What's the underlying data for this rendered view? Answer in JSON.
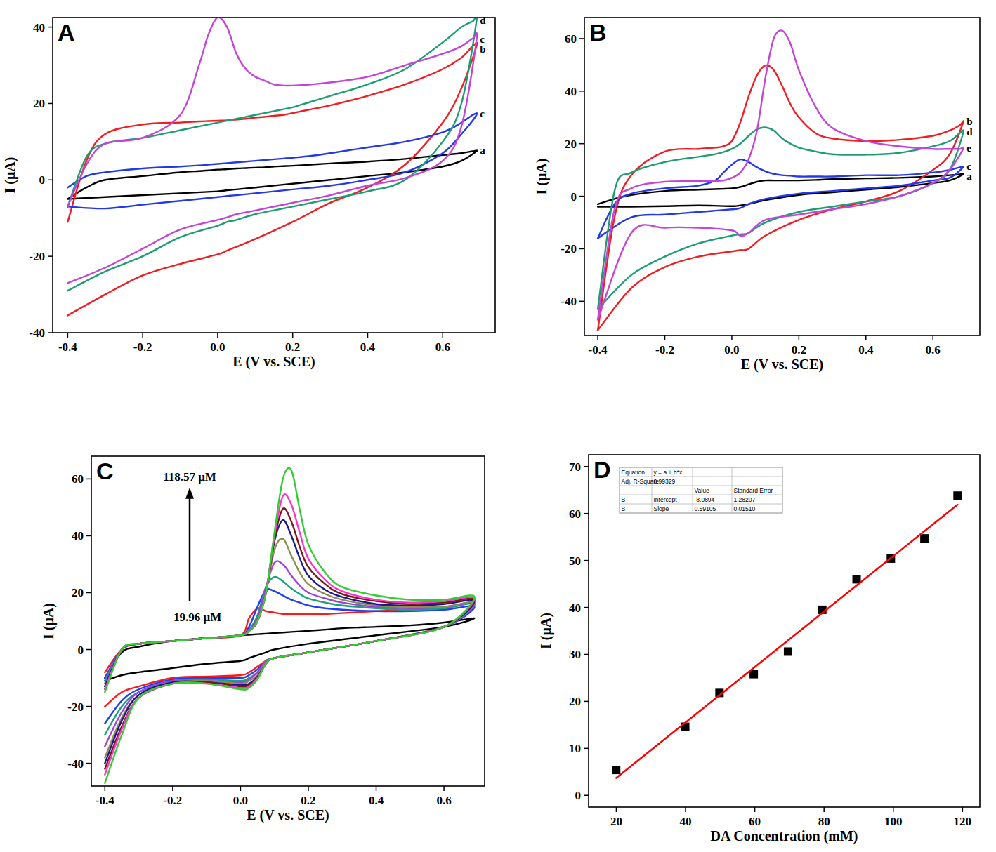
{
  "chart_data": [
    {
      "type": "line",
      "title": "A",
      "x_label": "E (V vs. SCE)",
      "y_label": "I (μA)",
      "xlim": [
        -0.44,
        0.74
      ],
      "xticks": [
        -0.4,
        -0.2,
        {
          "value": 0,
          "label": "0.0"
        },
        0.2,
        0.4,
        0.6
      ],
      "ylim": [
        -40,
        42.5
      ],
      "yticks": [
        -40,
        -20,
        0,
        20,
        40
      ],
      "grid": false,
      "x": [
        -0.4,
        -0.35,
        -0.3,
        -0.2,
        -0.1,
        -0.05,
        -0.025,
        0,
        0.025,
        0.05,
        0.075,
        0.1,
        0.125,
        0.15,
        0.175,
        0.2,
        0.25,
        0.3,
        0.4,
        0.5,
        0.6,
        0.65,
        0.68,
        0.69,
        0.65,
        0.6,
        0.5,
        0.4,
        0.3,
        0.2,
        0.1,
        0.05,
        0.025,
        0,
        -0.1,
        -0.2,
        -0.3,
        -0.4
      ],
      "series": [
        {
          "name": "a",
          "color": "#000000",
          "values": [
            -5,
            -2,
            0,
            1,
            2,
            2.3,
            2.5,
            2.7,
            2.8,
            3,
            3.1,
            3.2,
            3.3,
            3.5,
            3.6,
            3.7,
            4,
            4.3,
            4.8,
            5.5,
            6.5,
            7,
            7.5,
            7.5,
            5,
            3.5,
            2,
            1,
            0,
            -1,
            -2,
            -2.5,
            -2.7,
            -3,
            -3.5,
            -4,
            -4.5,
            -5
          ]
        },
        {
          "name": "b",
          "color": "#f01e23",
          "values": [
            -11,
            5,
            12,
            14.5,
            15,
            15.3,
            15.4,
            15.5,
            15.6,
            15.8,
            16,
            16.3,
            16.5,
            16.8,
            17,
            17.5,
            18.5,
            19.5,
            22,
            25,
            29,
            32,
            35,
            35,
            24,
            15,
            4,
            -2,
            -6,
            -11,
            -15.5,
            -17.5,
            -18.5,
            -19.5,
            -22,
            -25,
            -30,
            -35.5
          ]
        },
        {
          "name": "c",
          "color": "#2438e8",
          "values": [
            -2,
            1,
            2,
            3,
            3.5,
            3.8,
            4,
            4.2,
            4.4,
            4.6,
            4.8,
            5,
            5.2,
            5.4,
            5.6,
            5.8,
            6.3,
            7,
            8.5,
            10,
            12.5,
            15,
            17,
            17,
            12,
            7,
            2,
            0,
            -1.5,
            -2.5,
            -3.5,
            -4,
            -4.2,
            -4.5,
            -5.5,
            -6.5,
            -7.5,
            -7
          ]
        },
        {
          "name": "d",
          "color": "#1d9e70",
          "values": [
            -7,
            6,
            9.5,
            11,
            13,
            14,
            14.5,
            15,
            15.5,
            16,
            16.5,
            17,
            17.5,
            18,
            18.5,
            19,
            20.5,
            22,
            25,
            29,
            36,
            40,
            41.5,
            41.5,
            20,
            10,
            0,
            -3,
            -5,
            -7,
            -9,
            -10.5,
            -11,
            -12,
            -15,
            -20,
            -24,
            -29
          ]
        },
        {
          "name": "c",
          "color": "#c443d8",
          "values": [
            -7,
            4,
            9.5,
            11,
            17,
            30,
            38,
            42.5,
            40,
            33,
            29,
            27,
            26,
            25,
            24.7,
            24.7,
            25,
            25.5,
            27,
            30,
            33,
            35,
            37,
            36.5,
            14,
            5,
            0.5,
            -1.5,
            -4,
            -6,
            -8,
            -9,
            -9.8,
            -10.5,
            -13,
            -18,
            -23,
            -27
          ]
        }
      ]
    },
    {
      "type": "line",
      "title": "B",
      "x_label": "E (V vs. SCE)",
      "y_label": "I (μA)",
      "xlim": [
        -0.44,
        0.74
      ],
      "xticks": [
        -0.4,
        -0.2,
        {
          "value": 0,
          "label": "0.0"
        },
        0.2,
        0.4,
        0.6
      ],
      "ylim": [
        -53,
        68
      ],
      "yticks": [
        -40,
        -20,
        0,
        20,
        40,
        60
      ],
      "grid": false,
      "x": [
        -0.4,
        -0.35,
        -0.3,
        -0.2,
        -0.1,
        -0.05,
        -0.025,
        0,
        0.025,
        0.05,
        0.075,
        0.1,
        0.125,
        0.15,
        0.175,
        0.2,
        0.25,
        0.3,
        0.4,
        0.5,
        0.6,
        0.65,
        0.68,
        0.69,
        0.65,
        0.6,
        0.5,
        0.4,
        0.3,
        0.2,
        0.1,
        0.05,
        0.025,
        0,
        -0.1,
        -0.2,
        -0.3,
        -0.4
      ],
      "series": [
        {
          "name": "a",
          "color": "#000000",
          "values": [
            -3,
            -1,
            0.5,
            2,
            2.5,
            2.7,
            2.8,
            3,
            3.5,
            4.5,
            5.5,
            6,
            6,
            6,
            6,
            6,
            6.2,
            6.5,
            6.8,
            7,
            7.5,
            8,
            8.3,
            8.3,
            6,
            5,
            3.5,
            2.5,
            1.5,
            0.5,
            -1.5,
            -3,
            -3.5,
            -3.8,
            -3.5,
            -3.8,
            -4,
            -4
          ]
        },
        {
          "name": "b",
          "color": "#f01e23",
          "values": [
            -51,
            -8,
            8,
            17,
            18,
            18.5,
            19,
            21,
            28,
            38,
            46,
            49.8,
            48,
            42,
            35,
            30,
            24,
            22,
            21,
            21.5,
            23,
            25,
            27,
            28,
            16,
            10,
            2,
            -2,
            -5,
            -9,
            -15,
            -20,
            -20.5,
            -21,
            -23,
            -27,
            -35,
            -51
          ]
        },
        {
          "name": "c",
          "color": "#2438e8",
          "values": [
            -16,
            -3,
            1,
            3,
            4,
            6,
            9,
            12,
            14,
            13,
            11,
            9.5,
            8.5,
            8,
            7.8,
            7.5,
            7.5,
            7.5,
            8,
            8,
            9,
            10,
            11,
            11,
            7,
            6,
            4,
            3,
            2,
            1,
            -1,
            -3,
            -4.5,
            -5,
            -6,
            -7,
            -8,
            -16
          ]
        },
        {
          "name": "d",
          "color": "#1d9e70",
          "values": [
            -43,
            2,
            9,
            13,
            15,
            16,
            16.8,
            18,
            20,
            23,
            25.5,
            26.2,
            25,
            22,
            20,
            18.5,
            17,
            16,
            15.8,
            16.5,
            19,
            21,
            24,
            24,
            10,
            5,
            0,
            -2,
            -4,
            -6,
            -10,
            -14,
            -14.5,
            -15,
            -18,
            -23,
            -30,
            -43
          ]
        },
        {
          "name": "e",
          "color": "#c443d8",
          "values": [
            -47,
            -5,
            3,
            5.5,
            5.7,
            5.8,
            6,
            7,
            9,
            14,
            25,
            45,
            60,
            63,
            58,
            48,
            34,
            26,
            21,
            19,
            18,
            18,
            18,
            18,
            10,
            5,
            0,
            -3,
            -5,
            -7,
            -9,
            -14,
            -15,
            -13,
            -12,
            -12,
            -14,
            -47
          ]
        }
      ]
    },
    {
      "type": "line",
      "title": "C",
      "x_label": "E (V vs. SCE)",
      "y_label": "I (μA)",
      "annotations": [
        "118.57 μM",
        "19.96 μM"
      ],
      "xlim": [
        -0.44,
        0.72
      ],
      "xticks": [
        -0.4,
        -0.2,
        {
          "value": 0,
          "label": "0.0"
        },
        0.2,
        0.4,
        0.6
      ],
      "ylim": [
        -48,
        68
      ],
      "yticks": [
        -40,
        -20,
        0,
        20,
        40,
        60
      ],
      "grid": false,
      "x": [
        -0.4,
        -0.35,
        -0.3,
        -0.2,
        -0.1,
        0,
        0.025,
        0.05,
        0.075,
        0.1,
        0.125,
        0.15,
        0.175,
        0.2,
        0.25,
        0.3,
        0.4,
        0.5,
        0.6,
        0.69,
        0.6,
        0.4,
        0.2,
        0.1,
        0.075,
        0.05,
        0.025,
        0,
        -0.1,
        -0.2,
        -0.3,
        -0.35,
        -0.4
      ],
      "series": [
        {
          "color": "#000000",
          "values": [
            -10,
            -1,
            1,
            3,
            4,
            5,
            5.2,
            5.4,
            5.6,
            5.8,
            6,
            6.2,
            6.4,
            6.6,
            7,
            7.5,
            8,
            8.5,
            9.5,
            11,
            8,
            5,
            2,
            0,
            -1,
            -2,
            -3,
            -4,
            -5,
            -6.5,
            -8,
            -9,
            -11
          ]
        },
        {
          "color": "#ff1a1a",
          "values": [
            -8,
            0,
            2,
            3,
            4,
            5,
            11,
            14.5,
            13.5,
            13,
            12.5,
            12.5,
            12.5,
            12.5,
            12.5,
            12.8,
            13.5,
            14,
            15,
            16,
            8,
            3,
            -1,
            -3,
            -4,
            -6,
            -8,
            -9,
            -9.5,
            -10,
            -13,
            -15,
            -20
          ]
        },
        {
          "color": "#1f3ff5",
          "values": [
            -10,
            0,
            2,
            3,
            4,
            5,
            8,
            15,
            21,
            20.5,
            19,
            17.5,
            16.5,
            15.5,
            14.5,
            14,
            13.5,
            13.5,
            14,
            15,
            8,
            3,
            -1,
            -3,
            -4,
            -7,
            -9,
            -10,
            -10,
            -10.5,
            -14,
            -18,
            -26
          ]
        },
        {
          "color": "#1aa37a",
          "values": [
            -11,
            0,
            2,
            3,
            4,
            5,
            7,
            12,
            22,
            25.5,
            24,
            21.5,
            19.5,
            18,
            16.5,
            15.5,
            14.5,
            14,
            14.5,
            16,
            8,
            3,
            -1,
            -3,
            -4,
            -8,
            -10,
            -11,
            -10.5,
            -11,
            -15,
            -20,
            -30
          ]
        },
        {
          "color": "#a040e0",
          "values": [
            -12,
            0,
            2,
            3,
            4,
            5,
            7,
            11,
            22,
            30.5,
            30,
            26,
            22.5,
            20,
            18,
            16.5,
            15,
            14.5,
            15,
            16,
            8,
            3,
            -1,
            -3,
            -4,
            -8,
            -10.5,
            -11.5,
            -11,
            -11,
            -15,
            -22,
            -34
          ]
        },
        {
          "color": "#8c8c50",
          "values": [
            -13,
            0,
            2,
            3,
            4,
            5,
            6.5,
            10,
            20,
            35,
            39,
            33,
            27,
            23,
            19.5,
            17.5,
            15.5,
            15,
            15,
            16.5,
            8,
            3,
            -1,
            -3,
            -4.5,
            -9,
            -11,
            -12,
            -11,
            -11.5,
            -16,
            -24,
            -38
          ]
        },
        {
          "color": "#1a1a8c",
          "values": [
            -13,
            0,
            2,
            3,
            4,
            5,
            6.5,
            10,
            20,
            38,
            45.5,
            40,
            32,
            26,
            21,
            18.5,
            16,
            15.5,
            16,
            17,
            8,
            3,
            -1,
            -3,
            -5,
            -9.5,
            -12,
            -12.5,
            -11.5,
            -11.5,
            -16,
            -25,
            -40
          ]
        },
        {
          "color": "#7a1a1a",
          "values": [
            -14,
            0,
            2,
            3,
            4,
            5,
            6.5,
            10,
            20,
            39,
            49.5,
            45,
            36,
            29,
            23,
            19.5,
            17,
            16,
            16.5,
            17.5,
            8,
            3,
            -1,
            -3,
            -5,
            -10,
            -12.5,
            -13,
            -11.5,
            -12,
            -17,
            -27,
            -42
          ]
        },
        {
          "color": "#ff33cc",
          "values": [
            -14,
            0,
            2,
            3,
            4,
            5,
            6.5,
            10,
            20,
            40,
            54,
            51,
            41,
            32,
            24.5,
            20.5,
            17.5,
            16.5,
            17,
            18,
            8,
            3,
            -1,
            -3,
            -5,
            -10,
            -13,
            -13.5,
            -12,
            -12,
            -17,
            -28,
            -44
          ]
        },
        {
          "color": "#33cc33",
          "values": [
            -15,
            0,
            2,
            3,
            4,
            5,
            6.5,
            10,
            20,
            41,
            60,
            63,
            49,
            37,
            27,
            22,
            19,
            17.5,
            17.5,
            18.5,
            8,
            3,
            -1,
            -3,
            -5,
            -10.5,
            -13.5,
            -14,
            -12,
            -12,
            -17,
            -30,
            -47
          ]
        }
      ]
    },
    {
      "type": "scatter",
      "title": "D",
      "x_label": "DA Concentration (mM)",
      "y_label": "I (μA)",
      "xlim": [
        12,
        125
      ],
      "xticks": [
        20,
        40,
        60,
        80,
        100,
        120
      ],
      "ylim": [
        -2.5,
        72.5
      ],
      "yticks": [
        0,
        10,
        20,
        30,
        40,
        50,
        60,
        70
      ],
      "grid": false,
      "inset_table": {
        "rows": [
          [
            "Equation",
            "y = a + b*x",
            null,
            null
          ],
          [
            "Adj. R-Square",
            "0.99329",
            null,
            null
          ],
          [
            null,
            null,
            "Value",
            "Standard Error"
          ],
          [
            "B",
            "Intercept",
            "-8.0894",
            "1.28207"
          ],
          [
            "B",
            "Slope",
            "0.59105",
            "0.01510"
          ]
        ]
      },
      "series": [
        {
          "type": "scatter",
          "marker": "square",
          "color": "#000000",
          "x": [
            19.96,
            39.9,
            49.8,
            59.7,
            69.6,
            79.5,
            89.4,
            99.3,
            109.0,
            118.57
          ],
          "values": [
            5.4,
            14.6,
            21.8,
            25.8,
            30.6,
            39.5,
            46.0,
            50.4,
            54.7,
            63.8
          ]
        },
        {
          "type": "line",
          "color": "#ff0000",
          "x": [
            19.96,
            118.57
          ],
          "values": [
            3.7,
            61.9
          ]
        }
      ]
    }
  ]
}
